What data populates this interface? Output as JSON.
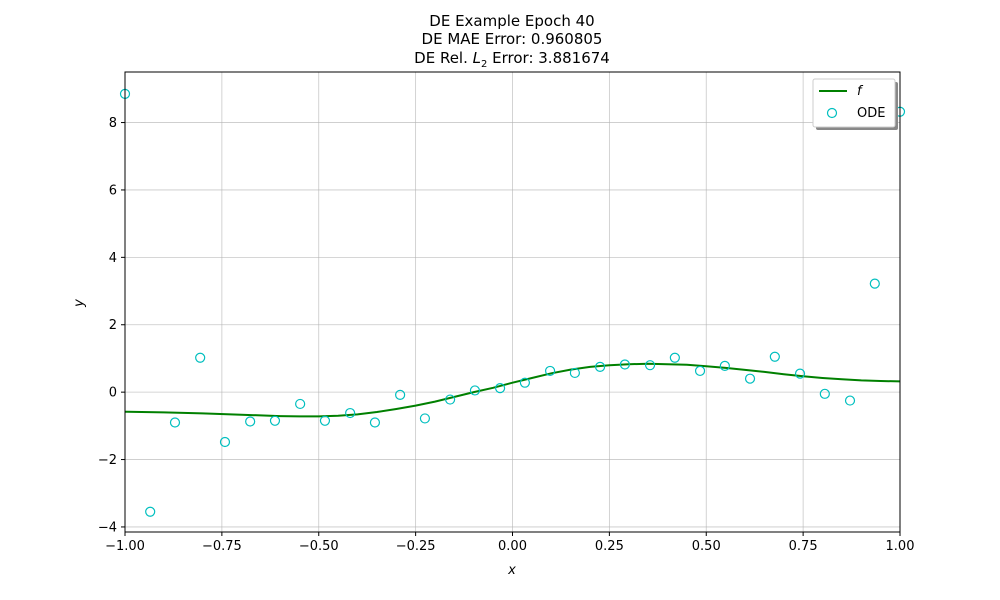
{
  "chart_data": {
    "type": "line",
    "title_lines": [
      "DE Example Epoch 40",
      "DE MAE Error: 0.960805"
    ],
    "title_rel_prefix": "DE Rel. ",
    "title_rel_symbol": "L",
    "title_rel_sub": "2",
    "title_rel_value": " Error: 3.881674",
    "xlabel": "x",
    "ylabel": "y",
    "xlim": [
      -1.0,
      1.0
    ],
    "ylim": [
      -4.15,
      9.5
    ],
    "xticks": [
      -1.0,
      -0.75,
      -0.5,
      -0.25,
      0.0,
      0.25,
      0.5,
      0.75,
      1.0
    ],
    "xtick_labels": [
      "−1.00",
      "−0.75",
      "−0.50",
      "−0.25",
      "0.00",
      "0.25",
      "0.50",
      "0.75",
      "1.00"
    ],
    "yticks": [
      -4,
      -2,
      0,
      2,
      4,
      6,
      8
    ],
    "ytick_labels": [
      "−4",
      "−2",
      "0",
      "2",
      "4",
      "6",
      "8"
    ],
    "grid": true,
    "legend_position": "top-right",
    "series": [
      {
        "name": "f",
        "kind": "line",
        "color": "#008000",
        "x": [
          -1.0,
          -0.9,
          -0.8,
          -0.7,
          -0.6,
          -0.55,
          -0.5,
          -0.45,
          -0.4,
          -0.35,
          -0.3,
          -0.25,
          -0.2,
          -0.15,
          -0.1,
          -0.05,
          0.0,
          0.05,
          0.1,
          0.15,
          0.2,
          0.25,
          0.3,
          0.35,
          0.4,
          0.45,
          0.5,
          0.55,
          0.6,
          0.65,
          0.7,
          0.75,
          0.8,
          0.85,
          0.9,
          0.95,
          1.0
        ],
        "y": [
          -0.58,
          -0.6,
          -0.63,
          -0.67,
          -0.71,
          -0.72,
          -0.72,
          -0.7,
          -0.66,
          -0.59,
          -0.5,
          -0.4,
          -0.28,
          -0.14,
          0.0,
          0.13,
          0.28,
          0.42,
          0.56,
          0.67,
          0.75,
          0.8,
          0.83,
          0.84,
          0.83,
          0.81,
          0.77,
          0.72,
          0.66,
          0.6,
          0.53,
          0.47,
          0.42,
          0.38,
          0.35,
          0.33,
          0.32
        ]
      },
      {
        "name": "ODE",
        "kind": "scatter",
        "color": "#00bfbf",
        "x": [
          -1.0,
          -0.935,
          -0.871,
          -0.806,
          -0.742,
          -0.677,
          -0.613,
          -0.548,
          -0.484,
          -0.419,
          -0.355,
          -0.29,
          -0.226,
          -0.161,
          -0.097,
          -0.032,
          0.032,
          0.097,
          0.161,
          0.226,
          0.29,
          0.355,
          0.419,
          0.484,
          0.548,
          0.613,
          0.677,
          0.742,
          0.806,
          0.871,
          0.935,
          1.0
        ],
        "y": [
          8.85,
          -3.55,
          -0.9,
          1.02,
          -1.48,
          -0.87,
          -0.85,
          -0.35,
          -0.85,
          -0.62,
          -0.9,
          -0.08,
          -0.78,
          -0.22,
          0.05,
          0.12,
          0.28,
          0.63,
          0.57,
          0.75,
          0.82,
          0.8,
          1.02,
          0.63,
          0.78,
          0.4,
          1.05,
          0.55,
          -0.05,
          -0.25,
          3.22,
          8.32
        ]
      }
    ]
  }
}
